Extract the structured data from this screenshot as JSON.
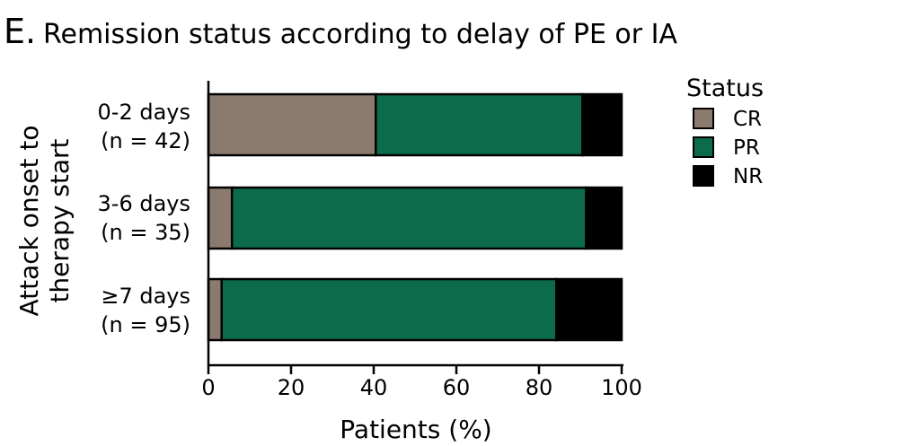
{
  "panel": {
    "letter": "E.",
    "title": "Remission status according to delay of PE or IA"
  },
  "chart_data": {
    "type": "bar",
    "orientation": "horizontal",
    "stacked": true,
    "categories": [
      {
        "line1": "0-2 days",
        "line2": "(n = 42)"
      },
      {
        "line1": "3-6 days",
        "line2": "(n = 35)"
      },
      {
        "line1": "≥7 days",
        "line2": "(n = 95)"
      }
    ],
    "series": [
      {
        "name": "CR",
        "color": "#8b7b6e",
        "values": [
          40.5,
          5.7,
          3.2
        ]
      },
      {
        "name": "PR",
        "color": "#0b6b4a",
        "values": [
          50.0,
          85.7,
          81.0
        ]
      },
      {
        "name": "NR",
        "color": "#000000",
        "values": [
          9.5,
          8.6,
          15.8
        ]
      }
    ],
    "xlabel": "Patients (%)",
    "ylabel_lines": [
      "Attack onset to",
      "therapy start"
    ],
    "xlim": [
      0,
      100
    ],
    "xticks": [
      "0",
      "20",
      "40",
      "60",
      "80",
      "100"
    ],
    "legend_title": "Status",
    "legend_position": "right",
    "grid": false
  }
}
